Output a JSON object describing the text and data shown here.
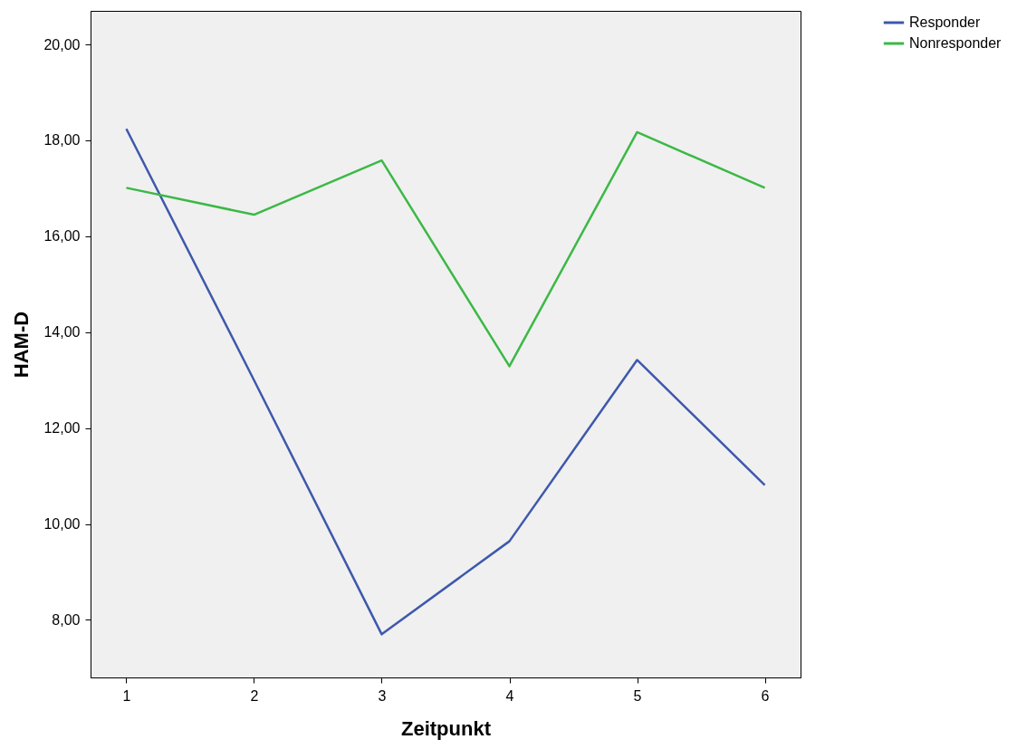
{
  "chart_data": {
    "type": "line",
    "xlabel": "Zeitpunkt",
    "ylabel": "HAM-D",
    "x": [
      1,
      2,
      3,
      4,
      5,
      6
    ],
    "series": [
      {
        "name": "Responder",
        "color": "#3e58ac",
        "values": [
          18.24,
          13.0,
          7.7,
          9.64,
          13.42,
          10.81
        ]
      },
      {
        "name": "Nonresponder",
        "color": "#3cb846",
        "values": [
          17.01,
          16.45,
          17.58,
          13.29,
          18.17,
          17.01
        ]
      }
    ],
    "xlim": [
      0.72,
      6.28
    ],
    "xticks": [
      1,
      2,
      3,
      4,
      5,
      6
    ],
    "ylim": [
      6.8,
      20.7
    ],
    "yticks": [
      {
        "value": 8,
        "label": "8,00"
      },
      {
        "value": 10,
        "label": "10,00"
      },
      {
        "value": 12,
        "label": "12,00"
      },
      {
        "value": 14,
        "label": "14,00"
      },
      {
        "value": 16,
        "label": "16,00"
      },
      {
        "value": 18,
        "label": "18,00"
      },
      {
        "value": 20,
        "label": "20,00"
      }
    ],
    "grid": false,
    "legend": "top right",
    "marker": "none",
    "line_style": "solid"
  }
}
